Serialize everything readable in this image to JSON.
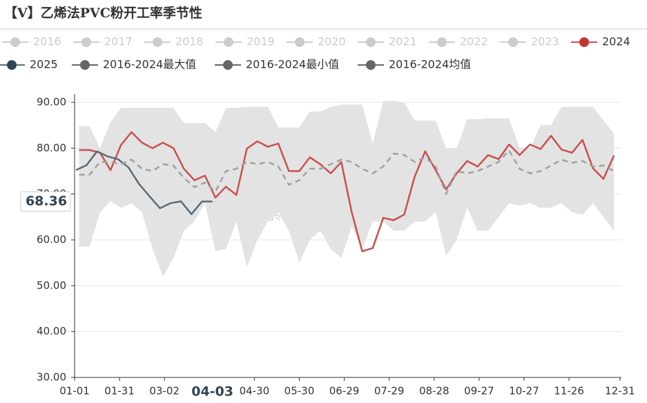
{
  "chart_data": {
    "type": "line",
    "title": "【V】乙烯法PVC粉开工率季节性",
    "watermark": "紫金天风期货",
    "xlim": [
      0,
      365
    ],
    "xticks": [
      {
        "value": 0,
        "label": "01-01"
      },
      {
        "value": 30,
        "label": "01-31"
      },
      {
        "value": 60,
        "label": "03-02"
      },
      {
        "value": 120,
        "label": "04-30"
      },
      {
        "value": 150,
        "label": "05-30"
      },
      {
        "value": 180,
        "label": "06-29"
      },
      {
        "value": 210,
        "label": "07-29"
      },
      {
        "value": 240,
        "label": "08-28"
      },
      {
        "value": 270,
        "label": "09-27"
      },
      {
        "value": 300,
        "label": "10-27"
      },
      {
        "value": 330,
        "label": "11-26"
      },
      {
        "value": 364,
        "label": "12-31"
      }
    ],
    "ylim": [
      30,
      90
    ],
    "yticks": [
      {
        "value": 30,
        "label": "30.00"
      },
      {
        "value": 40,
        "label": "40.00"
      },
      {
        "value": 50,
        "label": "50.00"
      },
      {
        "value": 60,
        "label": "60.00"
      },
      {
        "value": 70,
        "label": "70.00"
      },
      {
        "value": 80,
        "label": "80.00"
      },
      {
        "value": 90,
        "label": "90.00"
      }
    ],
    "grid": true,
    "pointer": {
      "y": 68.36,
      "x_label": "04-03"
    },
    "x_week": [
      3,
      10,
      17,
      24,
      31,
      38,
      45,
      52,
      59,
      66,
      73,
      80,
      87,
      94,
      101,
      108,
      115,
      122,
      129,
      136,
      143,
      150,
      157,
      164,
      171,
      178,
      185,
      192,
      199,
      206,
      213,
      220,
      227,
      234,
      241,
      248,
      255,
      262,
      269,
      276,
      283,
      290,
      297,
      304,
      311,
      318,
      325,
      332,
      339,
      346,
      353,
      360
    ],
    "x_2025": [
      1,
      8,
      15,
      22,
      29,
      36,
      43,
      50,
      57,
      64,
      71,
      78,
      85,
      92
    ],
    "series": [
      {
        "name": "2016",
        "color": "#cccccc",
        "hidden": true
      },
      {
        "name": "2017",
        "color": "#cccccc",
        "hidden": true
      },
      {
        "name": "2018",
        "color": "#cccccc",
        "hidden": true
      },
      {
        "name": "2019",
        "color": "#cccccc",
        "hidden": true
      },
      {
        "name": "2020",
        "color": "#cccccc",
        "hidden": true
      },
      {
        "name": "2021",
        "color": "#cccccc",
        "hidden": true
      },
      {
        "name": "2022",
        "color": "#cccccc",
        "hidden": true
      },
      {
        "name": "2023",
        "color": "#cccccc",
        "hidden": true
      },
      {
        "name": "2024",
        "color": "#c23531",
        "line_color": "#c9504f",
        "x": "x_week",
        "values": [
          79.6,
          79.6,
          79,
          75.2,
          80.7,
          83.5,
          81.2,
          80,
          81.2,
          80,
          75.5,
          73,
          74,
          69.2,
          71.6,
          69.8,
          79.9,
          81.5,
          80.3,
          81,
          75,
          75,
          78,
          76.5,
          74.5,
          77,
          66,
          57.5,
          58.2,
          64.8,
          64.3,
          65.5,
          73.8,
          79.3,
          75.2,
          71,
          74.5,
          77.2,
          76,
          78.5,
          77.6,
          80.8,
          78.5,
          80.8,
          79.8,
          82.7,
          79.7,
          79,
          81.8,
          75.6,
          73.3,
          78.4
        ]
      },
      {
        "name": "2025",
        "color": "#2f4554",
        "line_color": "#5a6b78",
        "x": "x_2025",
        "values": [
          75.2,
          76.3,
          79.3,
          78.2,
          77.6,
          75.8,
          72.2,
          69.5,
          66.9,
          68,
          68.4,
          65.6,
          68.36,
          68.36
        ]
      },
      {
        "name": "2016-2024最大值",
        "color": "#666666",
        "role": "max",
        "x": "x_week",
        "values": [
          84.8,
          84.8,
          80,
          85.7,
          88.8,
          88.8,
          88.8,
          88.8,
          88.8,
          88.8,
          85.5,
          85.5,
          85.5,
          83.5,
          88.8,
          88.8,
          89,
          89,
          89,
          84.5,
          84.5,
          84.5,
          88,
          88,
          89,
          89.5,
          89.5,
          89.5,
          81,
          90.3,
          90.3,
          90,
          86,
          86,
          86,
          80,
          80,
          86.3,
          86.3,
          86.5,
          86.5,
          86.5,
          80,
          80,
          85,
          85,
          89,
          89,
          89,
          89,
          86,
          83.2
        ]
      },
      {
        "name": "2016-2024最小值",
        "color": "#666666",
        "role": "min",
        "x": "x_week",
        "values": [
          58.5,
          58.5,
          66,
          68.5,
          67,
          68,
          66,
          58,
          52,
          56,
          62,
          64,
          68,
          57.5,
          58,
          64,
          54,
          60,
          64,
          66,
          62,
          55,
          60,
          62,
          58,
          56,
          63,
          58,
          64,
          64,
          62,
          62,
          64,
          64,
          66,
          56.5,
          60,
          67,
          62,
          62,
          65,
          68,
          67.5,
          68,
          67,
          67,
          68,
          66,
          65.5,
          68,
          65,
          62
        ]
      },
      {
        "name": "2016-2024均值",
        "color": "#666666",
        "role": "avg",
        "line_color": "#a0a0a0",
        "x": "x_week",
        "values": [
          74.2,
          74.2,
          77,
          77,
          76.5,
          77.5,
          75.5,
          75,
          76.5,
          76.2,
          73.5,
          71.5,
          72.5,
          70.5,
          75,
          75.5,
          77,
          76.5,
          77,
          76,
          72,
          73,
          75.5,
          75.5,
          76.5,
          77.5,
          77,
          75.5,
          74.5,
          76,
          78.8,
          78.5,
          77,
          78,
          76,
          70,
          75,
          74.5,
          75,
          76,
          77,
          79.5,
          75.5,
          74.5,
          75,
          76.2,
          77.5,
          76.8,
          77.2,
          76,
          76.2,
          75
        ]
      }
    ]
  }
}
